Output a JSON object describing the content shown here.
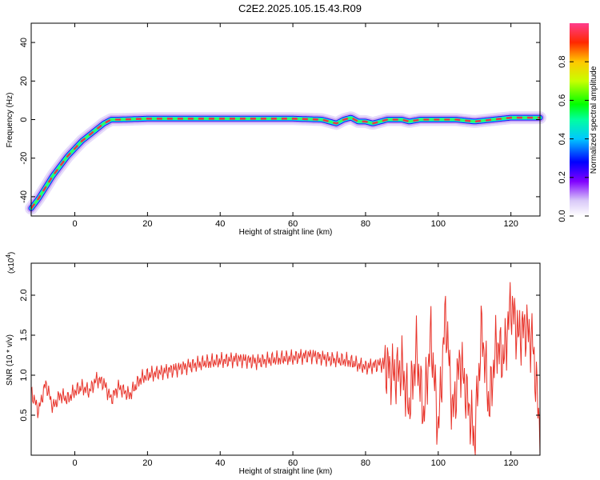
{
  "title": "C2E2.2025.105.15.43.R09",
  "colors": {
    "signal": "#e8332a",
    "axis": "#000000",
    "track_core": "#e8354a"
  },
  "chart_data": [
    {
      "type": "heatmap",
      "xlabel": "Height of straight line (km)",
      "ylabel": "Frequency (Hz)",
      "xlim": [
        -12,
        128
      ],
      "ylim": [
        -50,
        50
      ],
      "xticks": [
        "0",
        "20",
        "40",
        "60",
        "80",
        "100",
        "120"
      ],
      "yticks": [
        "-40",
        "-20",
        "0",
        "20",
        "40"
      ],
      "track": {
        "x": [
          -12,
          -10,
          -8,
          -6,
          -4,
          -2,
          0,
          2,
          4,
          6,
          8,
          10,
          12,
          20,
          30,
          40,
          50,
          60,
          68,
          70,
          72,
          74,
          76,
          78,
          80,
          82,
          84,
          86,
          90,
          92,
          95,
          100,
          105,
          110,
          115,
          120,
          125,
          128
        ],
        "y": [
          -46,
          -41,
          -35,
          -29,
          -24,
          -19,
          -15,
          -11,
          -8,
          -5,
          -2,
          0,
          0,
          0.5,
          0.5,
          0.5,
          0.5,
          0.5,
          0,
          -1,
          -2,
          0,
          1,
          -1,
          -1,
          -2,
          -1,
          0,
          0,
          -1,
          0,
          0,
          0,
          -1,
          0,
          1,
          1,
          1
        ]
      },
      "colorbar": {
        "label": "Normalized spectral amplitude",
        "ticks": [
          "0.0",
          "0.2",
          "0.4",
          "0.6",
          "0.8"
        ],
        "range": [
          0,
          1
        ]
      }
    },
    {
      "type": "line",
      "xlabel": "Height of straight line (km)",
      "ylabel": "SNR (10 * v/v)",
      "ylabel_multiplier": "(x10",
      "ylabel_multiplier_exp": "4",
      "ylabel_multiplier_close": ")",
      "xlim": [
        -12,
        128
      ],
      "ylim": [
        0,
        2.4
      ],
      "xticks": [
        "0",
        "20",
        "40",
        "60",
        "80",
        "100",
        "120"
      ],
      "yticks": [
        "0.5",
        "1.0",
        "1.5",
        "2.0"
      ],
      "series": [
        {
          "x": [
            -12,
            -10,
            -8,
            -6,
            -4,
            -2,
            0,
            2,
            4,
            6,
            8,
            10,
            12,
            15,
            18,
            20,
            25,
            30,
            35,
            40,
            45,
            50,
            55,
            60,
            65,
            70,
            75,
            80,
            85,
            88,
            90,
            92,
            94,
            96,
            98,
            100,
            102,
            104,
            106,
            108,
            110,
            112,
            114,
            116,
            118,
            120,
            122,
            124,
            126,
            128
          ],
          "y": [
            0.8,
            0.55,
            0.9,
            0.6,
            0.75,
            0.7,
            0.8,
            0.85,
            0.8,
            0.95,
            0.9,
            0.7,
            0.85,
            0.75,
            0.95,
            1.0,
            1.05,
            1.1,
            1.15,
            1.18,
            1.2,
            1.17,
            1.2,
            1.22,
            1.25,
            1.2,
            1.18,
            1.1,
            1.15,
            1.0,
            1.1,
            0.6,
            1.3,
            0.5,
            1.5,
            0.3,
            1.8,
            0.5,
            1.2,
            0.7,
            0.2,
            1.6,
            0.6,
            1.4,
            1.2,
            1.9,
            1.5,
            1.6,
            1.4,
            0.3
          ]
        }
      ]
    }
  ]
}
